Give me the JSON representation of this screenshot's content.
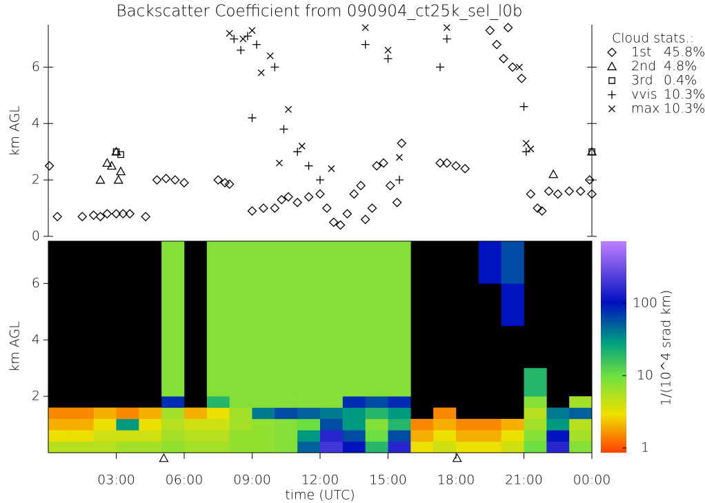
{
  "chart_data": [
    {
      "type": "scatter",
      "title": "Backscatter Coefficient from 090904_ct25k_sel_l0b",
      "y_label": "km AGL",
      "legend_title": "Cloud stats.:",
      "xlim": [
        0,
        24
      ],
      "ylim": [
        0,
        7.5
      ],
      "yticks": [
        0,
        2,
        4,
        6
      ],
      "series": [
        {
          "name": "1st",
          "stat": "45.8%",
          "marker": "diamond",
          "color": "#000000",
          "x": [
            0.05,
            0.4,
            1.5,
            2.0,
            2.3,
            2.6,
            3.0,
            3.3,
            3.6,
            4.3,
            4.8,
            5.2,
            5.6,
            6.0,
            7.5,
            7.8,
            8.0,
            9.0,
            9.5,
            10.0,
            10.3,
            10.6,
            11.0,
            11.5,
            12.0,
            12.3,
            12.6,
            12.9,
            13.2,
            13.5,
            13.8,
            14.0,
            14.3,
            14.5,
            14.8,
            15.1,
            15.4,
            15.6,
            17.3,
            17.6,
            18.0,
            18.4,
            19.5,
            19.8,
            20.1,
            20.3,
            20.5,
            20.9,
            21.3,
            21.6,
            21.8,
            22.1,
            22.5,
            23.0,
            23.5,
            23.9,
            24.0
          ],
          "values": [
            2.5,
            0.7,
            0.7,
            0.75,
            0.7,
            0.8,
            0.8,
            0.8,
            0.8,
            0.7,
            2.0,
            2.05,
            2.0,
            1.9,
            2.0,
            1.9,
            1.85,
            0.9,
            1.0,
            1.0,
            1.3,
            1.4,
            1.2,
            1.4,
            1.5,
            1.0,
            0.5,
            0.4,
            0.8,
            1.5,
            1.8,
            0.6,
            1.0,
            2.5,
            2.6,
            1.8,
            1.2,
            3.3,
            2.6,
            2.6,
            2.5,
            2.4,
            7.3,
            6.8,
            6.3,
            7.4,
            6.0,
            5.6,
            1.5,
            1.0,
            0.9,
            1.6,
            1.5,
            1.6,
            1.6,
            2.0,
            1.5
          ]
        },
        {
          "name": "2nd",
          "stat": "4.8%",
          "marker": "triangle",
          "color": "#000000",
          "x": [
            2.3,
            2.6,
            2.8,
            3.0,
            3.2,
            3.1,
            22.3,
            24.0
          ],
          "values": [
            2.0,
            2.6,
            2.5,
            3.0,
            2.3,
            2.0,
            2.2,
            3.0
          ]
        },
        {
          "name": "3rd",
          "stat": "0.4%",
          "marker": "square",
          "color": "#000000",
          "x": [
            3.0,
            3.2,
            24.0
          ],
          "values": [
            3.0,
            2.9,
            3.0
          ]
        },
        {
          "name": "vvis",
          "stat": "10.3%",
          "marker": "plus",
          "color": "#000000",
          "x": [
            8.2,
            8.5,
            8.8,
            9.2,
            9.0,
            10.0,
            10.4,
            11.0,
            11.5,
            12.0,
            14.0,
            15.0,
            17.3,
            17.6,
            21.0,
            21.1,
            15.5
          ],
          "values": [
            7.0,
            6.6,
            7.1,
            6.8,
            4.2,
            6.0,
            3.8,
            3.0,
            2.5,
            2.0,
            6.8,
            6.3,
            6.0,
            7.0,
            4.6,
            3.0,
            2.0
          ]
        },
        {
          "name": "max",
          "stat": "10.3%",
          "marker": "cross",
          "color": "#000000",
          "x": [
            8.0,
            8.6,
            9.0,
            9.4,
            9.8,
            10.6,
            10.2,
            11.2,
            12.5,
            14.0,
            15.0,
            15.5,
            17.6,
            20.8,
            21.1,
            21.3
          ],
          "values": [
            7.2,
            7.0,
            7.3,
            5.8,
            6.4,
            4.5,
            2.6,
            3.2,
            2.4,
            7.4,
            6.6,
            2.8,
            7.4,
            6.0,
            3.3,
            3.1
          ]
        }
      ]
    },
    {
      "type": "heatmap",
      "y_label": "km AGL",
      "x_label": "time (UTC)",
      "colorbar_label": "1/(10^4 srad km)",
      "xlim": [
        0,
        24
      ],
      "ylim": [
        0,
        7.5
      ],
      "yticks": [
        2,
        4,
        6
      ],
      "xticks": [
        {
          "value": 3,
          "label": "03:00"
        },
        {
          "value": 6,
          "label": "06:00"
        },
        {
          "value": 9,
          "label": "09:00"
        },
        {
          "value": 12,
          "label": "12:00"
        },
        {
          "value": 15,
          "label": "15:00"
        },
        {
          "value": 18,
          "label": "18:00"
        },
        {
          "value": 21,
          "label": "21:00"
        },
        {
          "value": 24,
          "label": "00:00"
        }
      ],
      "sun_markers_x": [
        5.1,
        18.05
      ],
      "log_color_scale": true,
      "clim": [
        0.86,
        720
      ],
      "cticks": [
        1,
        10,
        100
      ],
      "colormap": [
        [
          0,
          "#ff4000"
        ],
        [
          0.18,
          "#f0e000"
        ],
        [
          0.36,
          "#70e040"
        ],
        [
          0.52,
          "#00a080"
        ],
        [
          0.71,
          "#0010c0"
        ],
        [
          1,
          "#c080ff"
        ]
      ],
      "background": "#000000",
      "x_edges": [
        0,
        1,
        2,
        3,
        4,
        5,
        6,
        7,
        8,
        9,
        10,
        11,
        12,
        13,
        14,
        15,
        16,
        17,
        18,
        19,
        20,
        21,
        22,
        23,
        24
      ],
      "y_edges": [
        0,
        0.4,
        0.8,
        1.2,
        1.6,
        2.0,
        3.0,
        4.5,
        6.0,
        7.5
      ],
      "values": [
        [
          5,
          5,
          5,
          6,
          6,
          7,
          6,
          6,
          7,
          7,
          8,
          50,
          200,
          100,
          20,
          150,
          3,
          4,
          3,
          3,
          4,
          10,
          150,
          8
        ],
        [
          3,
          3,
          4,
          4,
          4,
          6,
          5,
          5,
          7,
          7,
          8,
          30,
          150,
          60,
          10,
          60,
          2,
          3,
          2,
          2,
          3,
          8,
          100,
          6
        ],
        [
          2,
          2,
          3,
          30,
          3,
          5,
          4,
          4,
          6,
          7,
          8,
          10,
          60,
          30,
          8,
          20,
          1.5,
          2,
          1.5,
          1.5,
          2,
          6,
          30,
          5
        ],
        [
          1.5,
          1.5,
          2,
          1.5,
          2,
          6,
          2,
          3,
          6,
          40,
          60,
          50,
          40,
          30,
          20,
          30,
          null,
          1.5,
          null,
          null,
          null,
          5,
          40,
          50
        ],
        [
          null,
          null,
          null,
          null,
          null,
          80,
          null,
          20,
          8,
          8,
          8,
          8,
          8,
          80,
          60,
          80,
          null,
          null,
          null,
          null,
          null,
          8,
          null,
          6
        ],
        [
          null,
          null,
          null,
          null,
          null,
          8,
          null,
          8,
          8,
          8,
          8,
          8,
          8,
          8,
          8,
          8,
          null,
          null,
          null,
          null,
          null,
          20,
          null,
          null
        ],
        [
          null,
          null,
          null,
          null,
          null,
          8,
          null,
          8,
          8,
          8,
          8,
          8,
          8,
          8,
          8,
          8,
          null,
          null,
          null,
          null,
          null,
          null,
          null,
          null
        ],
        [
          null,
          null,
          null,
          null,
          null,
          8,
          null,
          8,
          8,
          8,
          8,
          8,
          8,
          8,
          8,
          8,
          null,
          null,
          null,
          null,
          100,
          null,
          null,
          null
        ],
        [
          null,
          null,
          null,
          null,
          null,
          8,
          null,
          8,
          8,
          8,
          8,
          8,
          8,
          8,
          8,
          8,
          null,
          null,
          null,
          100,
          60,
          null,
          null,
          null
        ]
      ]
    }
  ]
}
